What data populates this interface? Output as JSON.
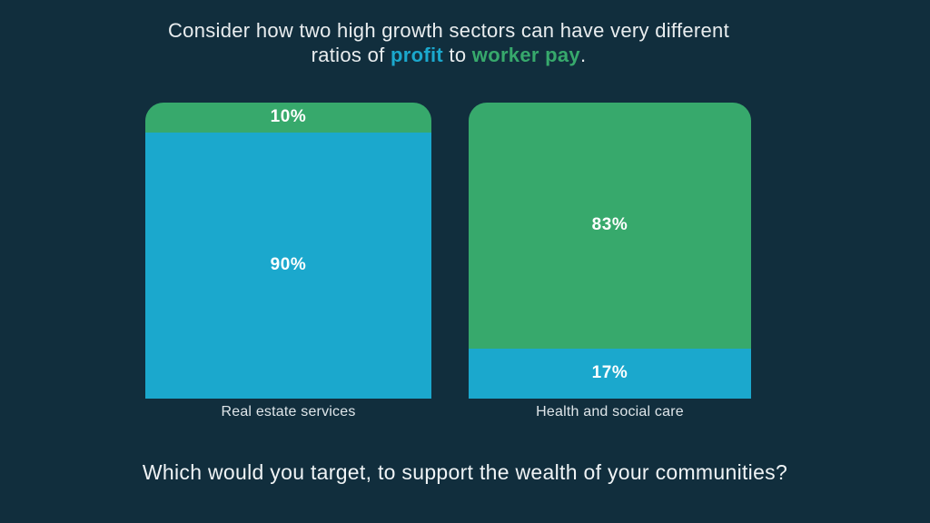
{
  "colors": {
    "background": "#112E3D",
    "profit_blue": "#1BA8CD",
    "worker_pay_green": "#37A96C",
    "title_text": "#E9EDEF",
    "caption_text": "#DEE5E9",
    "question_text": "#EFF3F5",
    "value_label_text": "#FFFFFF"
  },
  "title": {
    "line1": "Consider how two high growth sectors can have very different",
    "line2": {
      "prefix": "ratios of",
      "profit": "profit",
      "connector": "to",
      "worker_pay": "worker pay",
      "suffix": "."
    }
  },
  "bars": [
    {
      "label": "Real estate services",
      "segments": [
        {
          "series": "worker pay",
          "label": "10%",
          "pct": 10,
          "color_key": "worker_pay_green"
        },
        {
          "series": "profit",
          "label": "90%",
          "pct": 90,
          "color_key": "profit_blue"
        }
      ]
    },
    {
      "label": "Health and social care",
      "segments": [
        {
          "series": "worker pay",
          "label": "83%",
          "pct": 83,
          "color_key": "worker_pay_green"
        },
        {
          "series": "profit",
          "label": "17%",
          "pct": 17,
          "color_key": "profit_blue"
        }
      ]
    }
  ],
  "question": "Which would you target, to support the wealth of your communities?",
  "chart_data": {
    "type": "bar",
    "subtype": "stacked-percentage-columns",
    "title": "Consider how two high growth sectors can have very different ratios of profit to worker pay.",
    "categories": [
      "Real estate services",
      "Health and social care"
    ],
    "series": [
      {
        "name": "worker pay",
        "color": "#37A96C",
        "values": [
          10,
          83
        ],
        "stack_position": "top"
      },
      {
        "name": "profit",
        "color": "#1BA8CD",
        "values": [
          90,
          17
        ],
        "stack_position": "bottom"
      }
    ],
    "value_labels": [
      [
        "10%",
        "90%"
      ],
      [
        "83%",
        "17%"
      ]
    ],
    "ylim": [
      0,
      100
    ],
    "grid": false,
    "legend": "keywords colored inline in title (profit = blue, worker pay = green)",
    "annotation": "Which would you target, to support the wealth of your communities?"
  }
}
